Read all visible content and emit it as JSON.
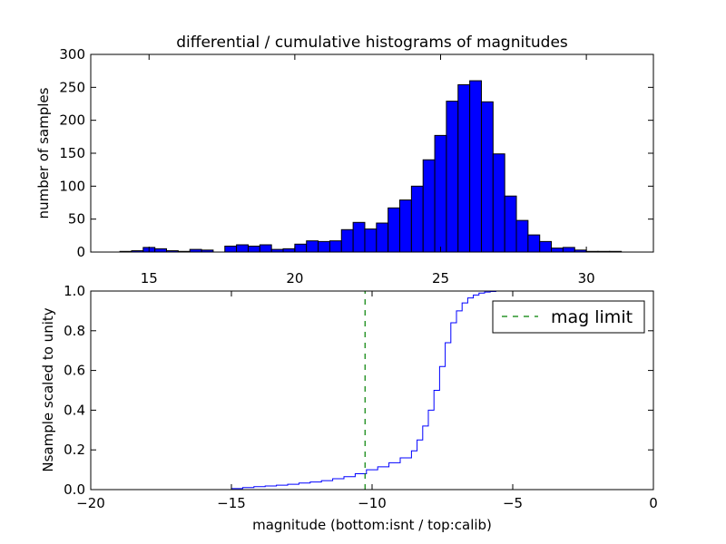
{
  "colors": {
    "bar_fill": "#0000ff",
    "bar_edge": "#000000",
    "step_line": "#0000ff",
    "mag_limit_line": "#007f00",
    "axes": "#000000",
    "background": "#ffffff"
  },
  "chart_data": [
    {
      "type": "bar",
      "panel": "top",
      "title": "differential / cumulative histograms of magnitudes",
      "xlabel": "",
      "ylabel": "number of samples",
      "xlim": [
        13.0,
        32.3
      ],
      "ylim": [
        0,
        300
      ],
      "xticks": [
        15,
        20,
        25,
        30
      ],
      "xtick_labels": [
        "15",
        "20",
        "25",
        "30"
      ],
      "yticks": [
        0,
        50,
        100,
        150,
        200,
        250,
        300
      ],
      "ytick_labels": [
        "0",
        "50",
        "100",
        "150",
        "200",
        "250",
        "300"
      ],
      "xtick_label_position": "bottom",
      "grid": false,
      "bin_edges": [
        14.0,
        14.4,
        14.8,
        15.2,
        15.6,
        16.0,
        16.4,
        16.8,
        17.2,
        17.6,
        18.0,
        18.4,
        18.8,
        19.2,
        19.6,
        20.0,
        20.4,
        20.8,
        21.2,
        21.6,
        22.0,
        22.4,
        22.8,
        23.2,
        23.6,
        24.0,
        24.4,
        24.8,
        25.2,
        25.6,
        26.0,
        26.4,
        26.8,
        27.2,
        27.6,
        28.0,
        28.4,
        28.8,
        29.2,
        29.6,
        30.0,
        30.4,
        30.8,
        31.2
      ],
      "values": [
        1,
        2,
        7,
        5,
        2,
        1,
        4,
        3,
        0,
        9,
        11,
        9,
        11,
        4,
        5,
        12,
        17,
        16,
        17,
        34,
        45,
        35,
        44,
        67,
        79,
        100,
        140,
        177,
        229,
        254,
        260,
        228,
        149,
        85,
        48,
        26,
        16,
        6,
        7,
        3,
        1,
        1,
        1
      ]
    },
    {
      "type": "line",
      "panel": "bottom",
      "title": "",
      "xlabel": "magnitude (bottom:isnt / top:calib)",
      "ylabel": "Nsample scaled to unity",
      "xlim": [
        -20,
        0
      ],
      "ylim": [
        0.0,
        1.0
      ],
      "xticks": [
        -20,
        -15,
        -10,
        -5,
        0
      ],
      "xtick_labels": [
        "−20",
        "−15",
        "−10",
        "−5",
        "0"
      ],
      "yticks": [
        0.0,
        0.2,
        0.4,
        0.6,
        0.8,
        1.0
      ],
      "ytick_labels": [
        "0.0",
        "0.2",
        "0.4",
        "0.6",
        "0.8",
        "1.0"
      ],
      "grid": false,
      "legend_position": "top-right",
      "series": [
        {
          "name": "",
          "style": "step",
          "x": [
            -20.0,
            -15.0,
            -14.6,
            -14.2,
            -13.8,
            -13.4,
            -13.0,
            -12.6,
            -12.2,
            -11.8,
            -11.4,
            -11.0,
            -10.6,
            -10.2,
            -9.8,
            -9.4,
            -9.0,
            -8.6,
            -8.4,
            -8.2,
            -8.0,
            -7.8,
            -7.6,
            -7.4,
            -7.2,
            -7.0,
            -6.8,
            -6.6,
            -6.4,
            -6.2,
            -6.0,
            -5.8,
            -5.6,
            0.0
          ],
          "y": [
            0.0,
            0.005,
            0.01,
            0.015,
            0.018,
            0.022,
            0.027,
            0.033,
            0.038,
            0.045,
            0.055,
            0.065,
            0.08,
            0.1,
            0.115,
            0.135,
            0.16,
            0.195,
            0.25,
            0.32,
            0.4,
            0.5,
            0.62,
            0.74,
            0.84,
            0.9,
            0.94,
            0.965,
            0.98,
            0.99,
            0.995,
            0.998,
            1.0,
            1.0
          ]
        },
        {
          "name": "mag limit",
          "style": "dashed",
          "x": [
            -10.25,
            -10.25
          ],
          "y": [
            0.0,
            1.0
          ]
        }
      ]
    }
  ]
}
